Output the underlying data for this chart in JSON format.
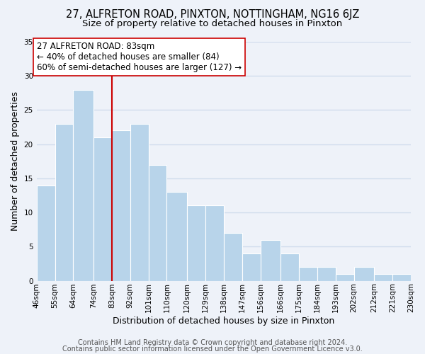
{
  "title_line1": "27, ALFRETON ROAD, PINXTON, NOTTINGHAM, NG16 6JZ",
  "title_line2": "Size of property relative to detached houses in Pinxton",
  "xlabel": "Distribution of detached houses by size in Pinxton",
  "ylabel": "Number of detached properties",
  "bar_color": "#b8d4ea",
  "bar_edge_color": "white",
  "vline_x": 83,
  "vline_color": "#cc0000",
  "annotation_title": "27 ALFRETON ROAD: 83sqm",
  "annotation_line2": "← 40% of detached houses are smaller (84)",
  "annotation_line3": "60% of semi-detached houses are larger (127) →",
  "annotation_box_edge": "#cc0000",
  "bins": [
    46,
    55,
    64,
    74,
    83,
    92,
    101,
    110,
    120,
    129,
    138,
    147,
    156,
    166,
    175,
    184,
    193,
    202,
    212,
    221,
    230
  ],
  "counts": [
    14,
    23,
    28,
    21,
    22,
    23,
    17,
    13,
    11,
    11,
    7,
    4,
    6,
    4,
    2,
    2,
    1,
    2,
    1,
    1
  ],
  "ylim": [
    0,
    35
  ],
  "yticks": [
    0,
    5,
    10,
    15,
    20,
    25,
    30,
    35
  ],
  "tick_labels": [
    "46sqm",
    "55sqm",
    "64sqm",
    "74sqm",
    "83sqm",
    "92sqm",
    "101sqm",
    "110sqm",
    "120sqm",
    "129sqm",
    "138sqm",
    "147sqm",
    "156sqm",
    "166sqm",
    "175sqm",
    "184sqm",
    "193sqm",
    "202sqm",
    "212sqm",
    "221sqm",
    "230sqm"
  ],
  "footer_line1": "Contains HM Land Registry data © Crown copyright and database right 2024.",
  "footer_line2": "Contains public sector information licensed under the Open Government Licence v3.0.",
  "background_color": "#eef2f9",
  "grid_color": "#d0dded",
  "title_fontsize": 10.5,
  "subtitle_fontsize": 9.5,
  "axis_label_fontsize": 9,
  "tick_fontsize": 7.5,
  "footer_fontsize": 7,
  "annotation_fontsize": 8.5
}
